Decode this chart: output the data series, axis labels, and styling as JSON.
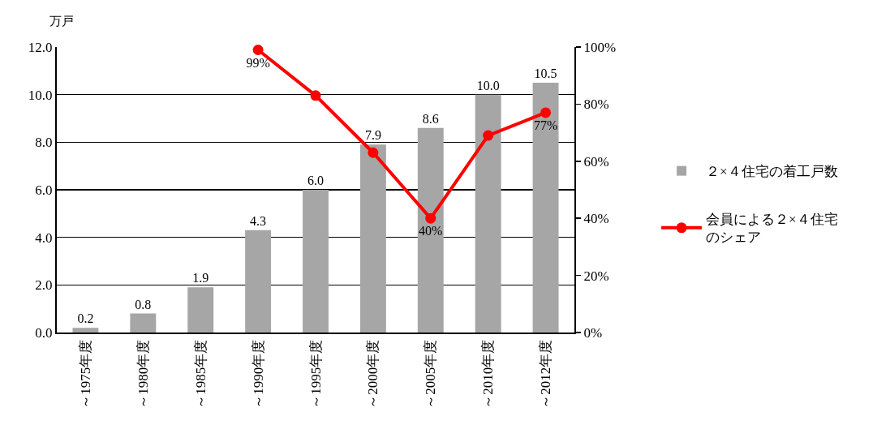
{
  "chart_data": {
    "type": "bar",
    "ylabel": "万戸",
    "categories": [
      "～1975年度",
      "～1980年度",
      "～1985年度",
      "～1990年度",
      "～1995年度",
      "～2000年度",
      "～2005年度",
      "～2010年度",
      "～2012年度"
    ],
    "series": [
      {
        "name": "２×４住宅の着工戸数",
        "color": "#a6a6a6",
        "values": [
          0.2,
          0.8,
          1.9,
          4.3,
          6.0,
          7.9,
          8.6,
          10.0,
          10.5
        ],
        "value_labels": [
          "0.2",
          "0.8",
          "1.9",
          "4.3",
          "6.0",
          "7.9",
          "8.6",
          "10.0",
          "10.5"
        ]
      },
      {
        "name": "会員による２×４住宅のシェア",
        "type": "line",
        "axis": "y2",
        "color": "#ff0000",
        "values": [
          null,
          null,
          null,
          99,
          83,
          63,
          40,
          69,
          77
        ],
        "value_labels": [
          null,
          null,
          null,
          "99%",
          null,
          null,
          "40%",
          null,
          "77%"
        ]
      }
    ],
    "ylim": [
      0,
      12
    ],
    "yticks": [
      {
        "value": 0,
        "label": "0.0"
      },
      {
        "value": 2,
        "label": "2.0"
      },
      {
        "value": 4,
        "label": "4.0"
      },
      {
        "value": 6,
        "label": "6.0"
      },
      {
        "value": 8,
        "label": "8.0"
      },
      {
        "value": 10,
        "label": "10.0"
      },
      {
        "value": 12,
        "label": "12.0"
      }
    ],
    "y2lim": [
      0,
      100
    ],
    "y2ticks": [
      {
        "value": 0,
        "label": "0%"
      },
      {
        "value": 20,
        "label": "20%"
      },
      {
        "value": 40,
        "label": "40%"
      },
      {
        "value": 60,
        "label": "60%"
      },
      {
        "value": 80,
        "label": "80%"
      },
      {
        "value": 100,
        "label": "100%"
      }
    ],
    "grid": "y",
    "legend": "right",
    "marker": "circle",
    "line_style": "solid"
  }
}
